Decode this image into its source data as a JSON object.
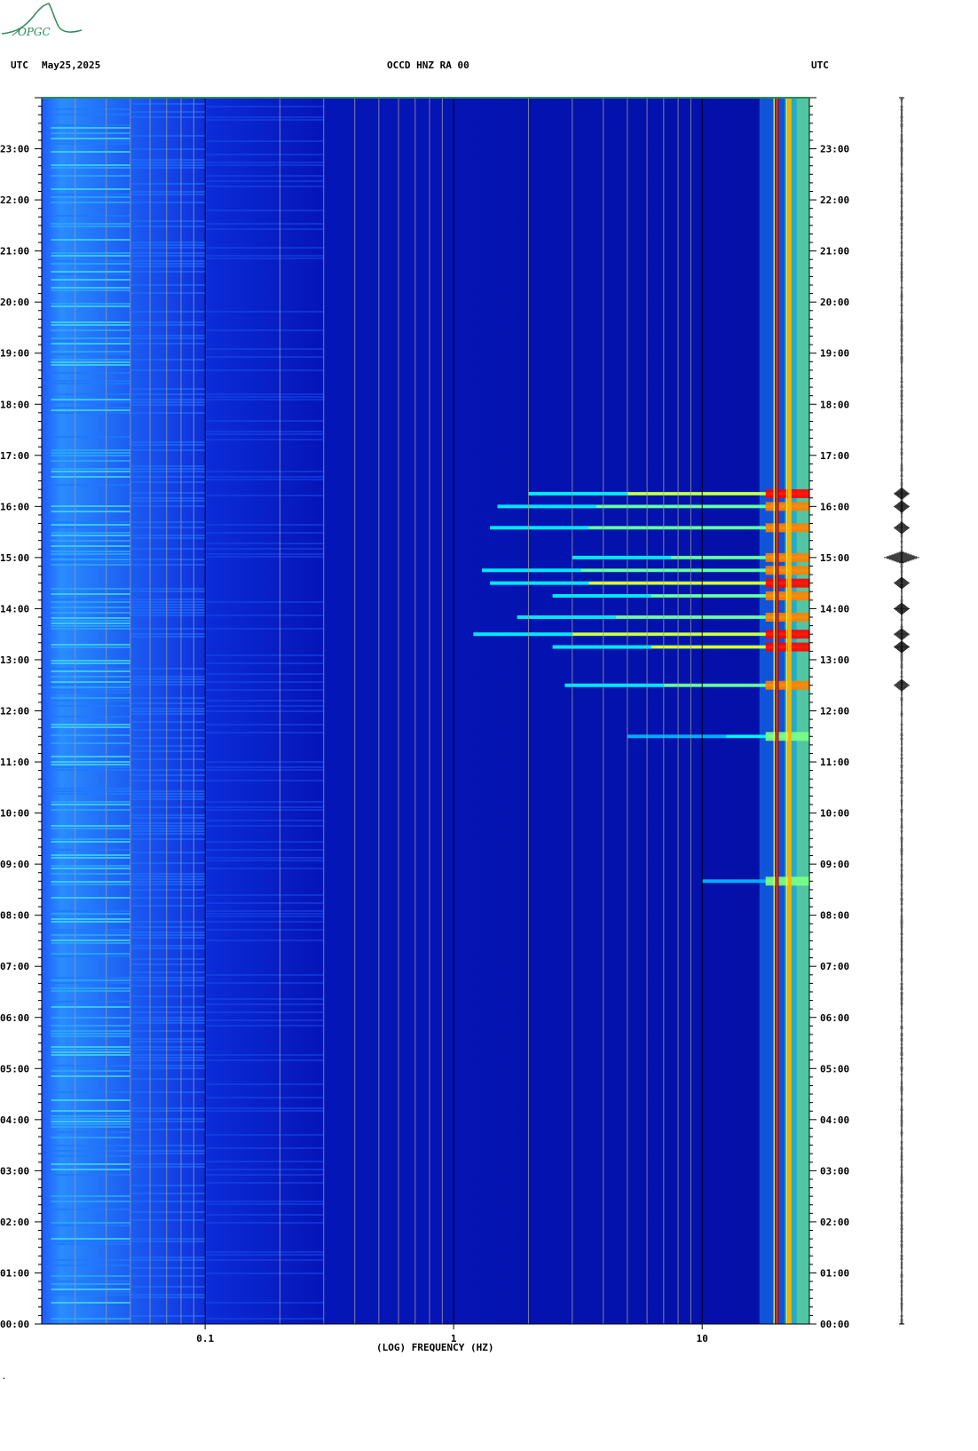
{
  "header": {
    "left_label": "UTC",
    "date": "May25,2025",
    "station": "OCCD HNZ RA 00",
    "right_label": "UTC"
  },
  "logo": {
    "text": "OPGC",
    "color": "#2e8b57"
  },
  "chart_data": {
    "type": "heatmap",
    "title": "OCCD HNZ RA 00",
    "xlabel": "(LOG) FREQUENCY (HZ)",
    "ylabel": "UTC",
    "x_scale": "log",
    "xlim": [
      0.022,
      27
    ],
    "ylim": [
      "00:00",
      "24:00"
    ],
    "x_ticks": [
      {
        "value": 0.1,
        "label": "0.1"
      },
      {
        "value": 1,
        "label": "1"
      },
      {
        "value": 10,
        "label": "10"
      }
    ],
    "y_ticks": [
      "00:00",
      "01:00",
      "02:00",
      "03:00",
      "04:00",
      "05:00",
      "06:00",
      "07:00",
      "08:00",
      "09:00",
      "10:00",
      "11:00",
      "12:00",
      "13:00",
      "14:00",
      "15:00",
      "16:00",
      "17:00",
      "18:00",
      "19:00",
      "20:00",
      "21:00",
      "22:00",
      "23:00"
    ],
    "colormap": [
      "#00008b",
      "#0000ff",
      "#00bfff",
      "#00ffff",
      "#7fff7f",
      "#ffff00",
      "#ff7f00",
      "#ff0000",
      "#8b0000"
    ],
    "persistent_lines_hz": [
      20,
      22.5
    ],
    "events": [
      {
        "time": "16:15",
        "fmin": 2.0,
        "intensity": 0.85
      },
      {
        "time": "16:00",
        "fmin": 1.5,
        "intensity": 0.75
      },
      {
        "time": "15:35",
        "fmin": 1.4,
        "intensity": 0.7
      },
      {
        "time": "15:00",
        "fmin": 3.0,
        "intensity": 0.75
      },
      {
        "time": "14:45",
        "fmin": 1.3,
        "intensity": 0.8
      },
      {
        "time": "14:30",
        "fmin": 1.4,
        "intensity": 0.85
      },
      {
        "time": "14:15",
        "fmin": 2.5,
        "intensity": 0.75
      },
      {
        "time": "13:50",
        "fmin": 1.8,
        "intensity": 0.8
      },
      {
        "time": "13:30",
        "fmin": 1.2,
        "intensity": 0.9
      },
      {
        "time": "13:15",
        "fmin": 2.5,
        "intensity": 0.85
      },
      {
        "time": "12:30",
        "fmin": 2.8,
        "intensity": 0.8
      },
      {
        "time": "11:30",
        "fmin": 5.0,
        "intensity": 0.55
      },
      {
        "time": "08:40",
        "fmin": 10.0,
        "intensity": 0.5
      }
    ],
    "seismogram_bursts": [
      "16:15",
      "16:00",
      "15:35",
      "15:00",
      "14:30",
      "14:00",
      "13:30",
      "13:15",
      "12:30"
    ]
  },
  "footer": {
    "corner_mark": "·"
  }
}
